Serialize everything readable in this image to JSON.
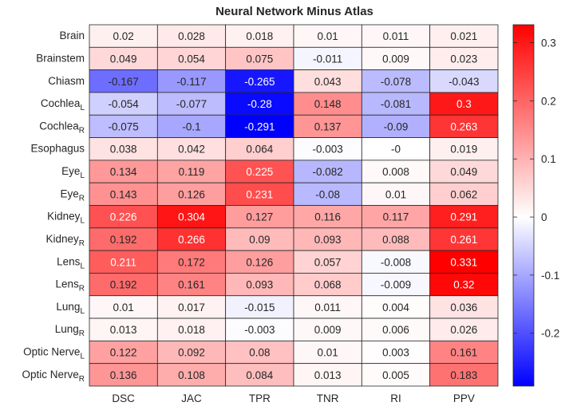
{
  "chart_data": {
    "type": "heatmap",
    "title": "Neural Network Minus Atlas",
    "columns": [
      "DSC",
      "JAC",
      "TPR",
      "TNR",
      "RI",
      "PPV"
    ],
    "rows": [
      {
        "label": "Brain",
        "sub": ""
      },
      {
        "label": "Brainstem",
        "sub": ""
      },
      {
        "label": "Chiasm",
        "sub": ""
      },
      {
        "label": "Cochlea",
        "sub": "L"
      },
      {
        "label": "Cochlea",
        "sub": "R"
      },
      {
        "label": "Esophagus",
        "sub": ""
      },
      {
        "label": "Eye",
        "sub": "L"
      },
      {
        "label": "Eye",
        "sub": "R"
      },
      {
        "label": "Kidney",
        "sub": "L"
      },
      {
        "label": "Kidney",
        "sub": "R"
      },
      {
        "label": "Lens",
        "sub": "L"
      },
      {
        "label": "Lens",
        "sub": "R"
      },
      {
        "label": "Lung",
        "sub": "L"
      },
      {
        "label": "Lung",
        "sub": "R"
      },
      {
        "label": "Optic Nerve",
        "sub": "L"
      },
      {
        "label": "Optic Nerve",
        "sub": "R"
      }
    ],
    "values": [
      [
        "0.02",
        "0.028",
        "0.018",
        "0.01",
        "0.011",
        "0.021"
      ],
      [
        "0.049",
        "0.054",
        "0.075",
        "-0.011",
        "0.009",
        "0.023"
      ],
      [
        "-0.167",
        "-0.117",
        "-0.265",
        "0.043",
        "-0.078",
        "-0.043"
      ],
      [
        "-0.054",
        "-0.077",
        "-0.28",
        "0.148",
        "-0.081",
        "0.3"
      ],
      [
        "-0.075",
        "-0.1",
        "-0.291",
        "0.137",
        "-0.09",
        "0.263"
      ],
      [
        "0.038",
        "0.042",
        "0.064",
        "-0.003",
        "-0",
        "0.019"
      ],
      [
        "0.134",
        "0.119",
        "0.225",
        "-0.082",
        "0.008",
        "0.049"
      ],
      [
        "0.143",
        "0.126",
        "0.231",
        "-0.08",
        "0.01",
        "0.062"
      ],
      [
        "0.226",
        "0.304",
        "0.127",
        "0.116",
        "0.117",
        "0.291"
      ],
      [
        "0.192",
        "0.266",
        "0.09",
        "0.093",
        "0.088",
        "0.261"
      ],
      [
        "0.211",
        "0.172",
        "0.126",
        "0.057",
        "-0.008",
        "0.331"
      ],
      [
        "0.192",
        "0.161",
        "0.093",
        "0.068",
        "-0.009",
        "0.32"
      ],
      [
        "0.01",
        "0.017",
        "-0.015",
        "0.011",
        "0.004",
        "0.036"
      ],
      [
        "0.013",
        "0.018",
        "-0.003",
        "0.009",
        "0.006",
        "0.026"
      ],
      [
        "0.122",
        "0.092",
        "0.08",
        "0.01",
        "0.003",
        "0.161"
      ],
      [
        "0.136",
        "0.108",
        "0.084",
        "0.013",
        "0.005",
        "0.183"
      ]
    ],
    "colorbar": {
      "range": [
        -0.291,
        0.331
      ],
      "ticks": [
        "0.3",
        "0.2",
        "0.1",
        "0",
        "-0.1",
        "-0.2"
      ],
      "colormap": {
        "low": "#0000ff",
        "mid": "#ffffff",
        "high": "#ff0000"
      }
    },
    "grid": true
  }
}
